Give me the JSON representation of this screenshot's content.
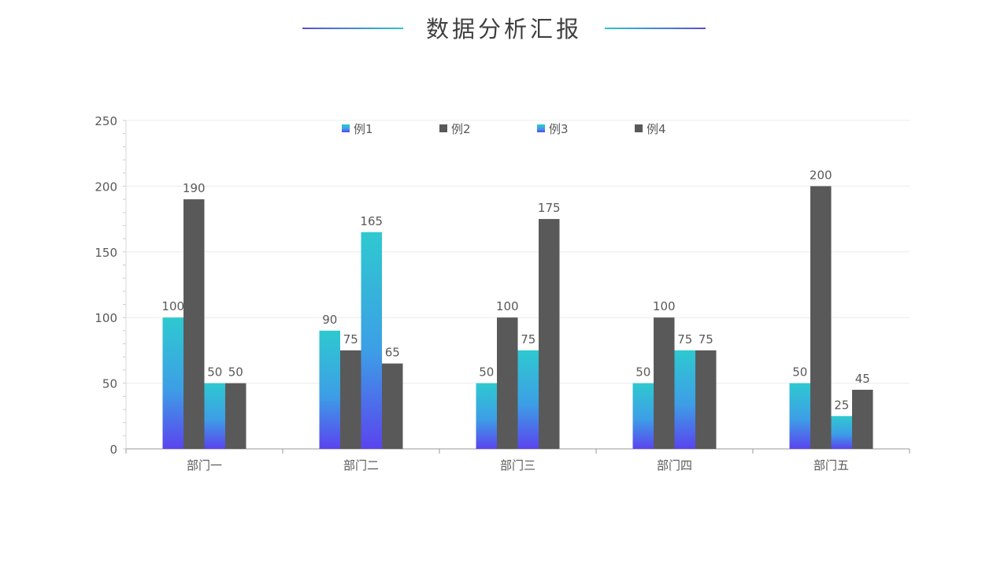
{
  "page": {
    "title": "数据分析汇报"
  },
  "colors": {
    "gradient_top": "#2ec9d0",
    "gradient_mid": "#3d9ee6",
    "gradient_bottom": "#5a44ee",
    "dark": "#595959",
    "axis": "#999999",
    "grid": "#ececec",
    "text": "#595959"
  },
  "chart_data": {
    "type": "bar",
    "categories": [
      "部门一",
      "部门二",
      "部门三",
      "部门四",
      "部门五"
    ],
    "series": [
      {
        "name": "例1",
        "values": [
          100,
          90,
          50,
          50,
          50
        ],
        "style": "gradient"
      },
      {
        "name": "例2",
        "values": [
          190,
          75,
          100,
          100,
          200
        ],
        "style": "dark"
      },
      {
        "name": "例3",
        "values": [
          50,
          165,
          75,
          75,
          25
        ],
        "style": "gradient"
      },
      {
        "name": "例4",
        "values": [
          50,
          65,
          175,
          75,
          45
        ],
        "style": "dark"
      }
    ],
    "ylim": [
      0,
      250
    ],
    "yticks": [
      0,
      50,
      100,
      150,
      200,
      250
    ],
    "grid": true,
    "legend": "top-center",
    "data_labels": true
  }
}
